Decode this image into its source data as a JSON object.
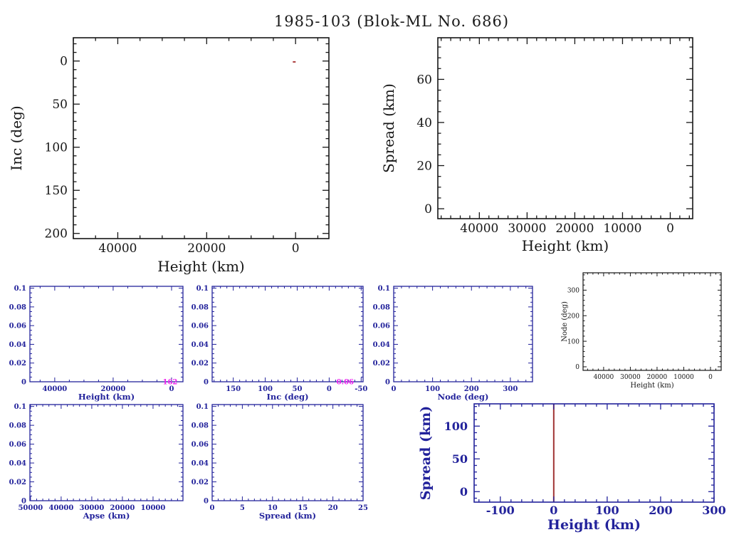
{
  "page_title": "1985-103 (Blok-ML No. 686)",
  "colors": {
    "axis_black": "#161616",
    "axis_blue": "#22229b",
    "point_red": "#aa3a3a",
    "line_red": "#a03434",
    "annotation_magenta": "#ee22ee",
    "background": "#ffffff"
  },
  "chart_data": [
    {
      "id": "inc-vs-height",
      "type": "scatter",
      "frame": "axis_black",
      "xlabel": "Height (km)",
      "ylabel": "Inc (deg)",
      "xlim": [
        50000,
        -7500
      ],
      "ylim": [
        206,
        -27
      ],
      "xticks": [
        {
          "v": 40000,
          "l": "40000"
        },
        {
          "v": 20000,
          "l": "20000"
        },
        {
          "v": 0,
          "l": "0"
        }
      ],
      "yticks": [
        {
          "v": 0,
          "l": "0"
        },
        {
          "v": 50,
          "l": "50"
        },
        {
          "v": 100,
          "l": "100"
        },
        {
          "v": 150,
          "l": "150"
        },
        {
          "v": 200,
          "l": "200"
        }
      ],
      "xminor": 5000,
      "yminor": 10,
      "points": [
        {
          "x": 300,
          "y": 1,
          "color": "point_red",
          "w": 4,
          "h": 2
        }
      ],
      "vlines": [],
      "annotations": []
    },
    {
      "id": "spread-vs-height",
      "type": "scatter",
      "frame": "axis_black",
      "xlabel": "Height (km)",
      "ylabel": "Spread (km)",
      "xlim": [
        48700,
        -4700
      ],
      "ylim": [
        -4.6,
        79.3
      ],
      "xticks": [
        {
          "v": 40000,
          "l": "40000"
        },
        {
          "v": 30000,
          "l": "30000"
        },
        {
          "v": 20000,
          "l": "20000"
        },
        {
          "v": 10000,
          "l": "10000"
        },
        {
          "v": 0,
          "l": "0"
        }
      ],
      "yticks": [
        {
          "v": 0,
          "l": "0"
        },
        {
          "v": 20,
          "l": "20"
        },
        {
          "v": 40,
          "l": "40"
        },
        {
          "v": 60,
          "l": "60"
        }
      ],
      "xminor": 2000,
      "yminor": 5,
      "points": [],
      "vlines": [],
      "annotations": []
    },
    {
      "id": "hist-height",
      "type": "bar",
      "frame": "axis_blue",
      "xlabel": "Height (km)",
      "ylabel": "",
      "xlim": [
        48500,
        -3900
      ],
      "ylim": [
        0,
        0.102
      ],
      "xticks": [
        {
          "v": 40000,
          "l": "40000"
        },
        {
          "v": 20000,
          "l": "20000"
        },
        {
          "v": 0,
          "l": "0"
        }
      ],
      "yticks": [
        {
          "v": 0,
          "l": "0"
        },
        {
          "v": 0.02,
          "l": "0.02"
        },
        {
          "v": 0.04,
          "l": "0.04"
        },
        {
          "v": 0.06,
          "l": "0.06"
        },
        {
          "v": 0.08,
          "l": "0.08"
        },
        {
          "v": 0.1,
          "l": "0.1"
        }
      ],
      "xminor": 5000,
      "yminor": 0.005,
      "values": [],
      "points": [],
      "vlines": [],
      "annotations": [
        {
          "x": 500,
          "y": 0,
          "text": "162",
          "color": "annotation_magenta"
        }
      ]
    },
    {
      "id": "hist-inc",
      "type": "bar",
      "frame": "axis_blue",
      "xlabel": "Inc (deg)",
      "ylabel": "",
      "xlim": [
        183,
        -53
      ],
      "ylim": [
        0,
        0.102
      ],
      "xticks": [
        {
          "v": 150,
          "l": "150"
        },
        {
          "v": 100,
          "l": "100"
        },
        {
          "v": 50,
          "l": "50"
        },
        {
          "v": 0,
          "l": "0"
        },
        {
          "v": -50,
          "l": "-50"
        }
      ],
      "yticks": [
        {
          "v": 0,
          "l": "0"
        },
        {
          "v": 0.02,
          "l": "0.02"
        },
        {
          "v": 0.04,
          "l": "0.04"
        },
        {
          "v": 0.06,
          "l": "0.06"
        },
        {
          "v": 0.08,
          "l": "0.08"
        },
        {
          "v": 0.1,
          "l": "0.1"
        }
      ],
      "xminor": 10,
      "yminor": 0.005,
      "values": [],
      "points": [],
      "vlines": [],
      "annotations": [
        {
          "x": -25,
          "y": 0,
          "text": "0.06",
          "color": "annotation_magenta"
        }
      ]
    },
    {
      "id": "hist-node",
      "type": "bar",
      "frame": "axis_blue",
      "xlabel": "Node (deg)",
      "ylabel": "",
      "xlim": [
        0,
        357
      ],
      "ylim": [
        0,
        0.102
      ],
      "xticks": [
        {
          "v": 0,
          "l": "0"
        },
        {
          "v": 100,
          "l": "100"
        },
        {
          "v": 200,
          "l": "200"
        },
        {
          "v": 300,
          "l": "300"
        }
      ],
      "yticks": [
        {
          "v": 0,
          "l": "0"
        },
        {
          "v": 0.02,
          "l": "0.02"
        },
        {
          "v": 0.04,
          "l": "0.04"
        },
        {
          "v": 0.06,
          "l": "0.06"
        },
        {
          "v": 0.08,
          "l": "0.08"
        },
        {
          "v": 0.1,
          "l": "0.1"
        }
      ],
      "xminor": 20,
      "yminor": 0.005,
      "values": [],
      "points": [],
      "vlines": [],
      "annotations": []
    },
    {
      "id": "node-vs-height",
      "type": "scatter",
      "frame": "axis_black",
      "xlabel": "Height (km)",
      "ylabel": "Node (deg)",
      "xlim": [
        47700,
        -4000
      ],
      "ylim": [
        -14,
        368
      ],
      "xticks": [
        {
          "v": 40000,
          "l": "40000"
        },
        {
          "v": 30000,
          "l": "30000"
        },
        {
          "v": 20000,
          "l": "20000"
        },
        {
          "v": 10000,
          "l": "10000"
        },
        {
          "v": 0,
          "l": "0"
        }
      ],
      "yticks": [
        {
          "v": 0,
          "l": "0"
        },
        {
          "v": 100,
          "l": "100"
        },
        {
          "v": 200,
          "l": "200"
        },
        {
          "v": 300,
          "l": "300"
        }
      ],
      "xminor": 2000,
      "yminor": 20,
      "points": [],
      "vlines": [],
      "annotations": []
    },
    {
      "id": "hist-apse",
      "type": "bar",
      "frame": "axis_blue",
      "xlabel": "Apse (km)",
      "ylabel": "",
      "xlim": [
        50200,
        233
      ],
      "ylim": [
        0,
        0.102
      ],
      "xticks": [
        {
          "v": 50000,
          "l": "50000"
        },
        {
          "v": 40000,
          "l": "40000"
        },
        {
          "v": 30000,
          "l": "30000"
        },
        {
          "v": 20000,
          "l": "20000"
        },
        {
          "v": 10000,
          "l": "10000"
        }
      ],
      "yticks": [
        {
          "v": 0,
          "l": "0"
        },
        {
          "v": 0.02,
          "l": "0.02"
        },
        {
          "v": 0.04,
          "l": "0.04"
        },
        {
          "v": 0.06,
          "l": "0.06"
        },
        {
          "v": 0.08,
          "l": "0.08"
        },
        {
          "v": 0.1,
          "l": "0.1"
        }
      ],
      "xminor": 2000,
      "yminor": 0.005,
      "values": [],
      "points": [],
      "vlines": [],
      "annotations": []
    },
    {
      "id": "hist-spread",
      "type": "bar",
      "frame": "axis_blue",
      "xlabel": "Spread (km)",
      "ylabel": "",
      "xlim": [
        0,
        25
      ],
      "ylim": [
        0,
        0.102
      ],
      "xticks": [
        {
          "v": 0,
          "l": "0"
        },
        {
          "v": 5,
          "l": "5"
        },
        {
          "v": 10,
          "l": "10"
        },
        {
          "v": 15,
          "l": "15"
        },
        {
          "v": 20,
          "l": "20"
        },
        {
          "v": 25,
          "l": "25"
        }
      ],
      "yticks": [
        {
          "v": 0,
          "l": "0"
        },
        {
          "v": 0.02,
          "l": "0.02"
        },
        {
          "v": 0.04,
          "l": "0.04"
        },
        {
          "v": 0.06,
          "l": "0.06"
        },
        {
          "v": 0.08,
          "l": "0.08"
        },
        {
          "v": 0.1,
          "l": "0.1"
        }
      ],
      "xminor": 1,
      "yminor": 0.005,
      "values": [],
      "points": [],
      "vlines": [],
      "annotations": []
    },
    {
      "id": "spread-vs-height-zoom",
      "type": "scatter",
      "frame": "axis_blue",
      "xlabel": "Height (km)",
      "ylabel": "Spread (km)",
      "xlim": [
        -149,
        300
      ],
      "ylim": [
        -16,
        134
      ],
      "xticks": [
        {
          "v": -100,
          "l": "-100"
        },
        {
          "v": 0,
          "l": "0"
        },
        {
          "v": 100,
          "l": "100"
        },
        {
          "v": 200,
          "l": "200"
        },
        {
          "v": 300,
          "l": "300"
        }
      ],
      "yticks": [
        {
          "v": 0,
          "l": "0"
        },
        {
          "v": 50,
          "l": "50"
        },
        {
          "v": 100,
          "l": "100"
        }
      ],
      "xminor": 20,
      "yminor": 10,
      "points": [],
      "vlines": [
        {
          "x": 0,
          "color": "line_red",
          "width": 2
        }
      ],
      "annotations": []
    }
  ]
}
